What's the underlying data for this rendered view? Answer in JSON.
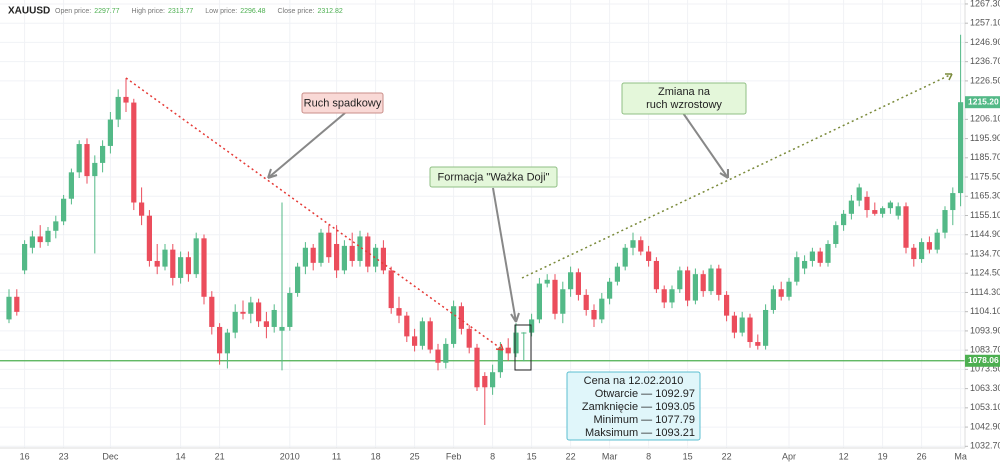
{
  "chart_data": {
    "type": "candlestick",
    "symbol": "XAUUSD",
    "header": [
      {
        "label": "Open price:",
        "value": 2297.77
      },
      {
        "label": "High price:",
        "value": 2313.77
      },
      {
        "label": "Low price:",
        "value": 2296.48
      },
      {
        "label": "Close price:",
        "value": 2312.82
      }
    ],
    "categories": [
      null,
      null,
      "16",
      null,
      null,
      null,
      null,
      "23",
      null,
      null,
      null,
      null,
      null,
      "Dec",
      null,
      null,
      null,
      null,
      null,
      null,
      null,
      null,
      "14",
      null,
      null,
      null,
      null,
      "21",
      null,
      null,
      null,
      null,
      null,
      null,
      null,
      null,
      "2010",
      null,
      null,
      null,
      null,
      null,
      "11",
      null,
      null,
      null,
      null,
      "18",
      null,
      null,
      null,
      null,
      "25",
      null,
      null,
      null,
      null,
      "Feb",
      null,
      null,
      null,
      null,
      "8",
      null,
      null,
      null,
      null,
      "15",
      null,
      null,
      null,
      null,
      "22",
      null,
      null,
      null,
      null,
      "Mar",
      null,
      null,
      null,
      null,
      "8",
      null,
      null,
      null,
      null,
      "15",
      null,
      null,
      null,
      null,
      "22",
      null,
      null,
      null,
      null,
      null,
      null,
      null,
      "Apr",
      null,
      null,
      null,
      null,
      null,
      null,
      "12",
      null,
      null,
      null,
      null,
      "19",
      null,
      null,
      null,
      null,
      "26",
      null,
      null,
      null,
      null,
      "Ma"
    ],
    "open": [
      1100,
      1112,
      1126,
      1138,
      1144,
      1141,
      1147,
      1152,
      1164,
      1178,
      1193,
      1176,
      1183,
      1192,
      1206,
      1218,
      1215,
      1162,
      1155,
      1131,
      1128,
      1137,
      1122,
      1133,
      1124,
      1143,
      1112,
      1096,
      1082,
      1093,
      1104,
      1103,
      1109,
      1099,
      1096,
      1094,
      1096,
      1114,
      1128,
      1138,
      1130,
      1146,
      1140,
      1126,
      1139,
      1131,
      1144,
      1128,
      1138,
      1126,
      1106,
      1102,
      1091,
      1086,
      1099,
      1084,
      1077,
      1087,
      1107,
      1095,
      1085,
      1070,
      1064,
      1072,
      1085,
      1082,
      1092.97,
      1093,
      1100,
      1119,
      1121,
      1103,
      1116,
      1125,
      1113,
      1105,
      1100,
      1111,
      1120,
      1128,
      1138,
      1142,
      1136,
      1131,
      1116,
      1109,
      1116,
      1126,
      1110,
      1124,
      1115,
      1127,
      1113,
      1102,
      1093,
      1101,
      1088,
      1086,
      1105,
      1116,
      1112,
      1120,
      1127,
      1131,
      1136,
      1130,
      1140,
      1150,
      1156,
      1163,
      1165,
      1158,
      1156,
      1159,
      1155,
      1160,
      1138,
      1132,
      1141,
      1137,
      1146,
      1158,
      1167
    ],
    "high": [
      1116,
      1116,
      1142,
      1147,
      1150,
      1149,
      1155,
      1166,
      1180,
      1195,
      1196,
      1187,
      1195,
      1210,
      1222,
      1228,
      1217,
      1170,
      1158,
      1140,
      1140,
      1140,
      1136,
      1136,
      1146,
      1145,
      1115,
      1098,
      1095,
      1108,
      1110,
      1112,
      1111,
      1104,
      1108,
      1162,
      1117,
      1130,
      1141,
      1140,
      1148,
      1150,
      1150,
      1142,
      1146,
      1147,
      1146,
      1140,
      1142,
      1128,
      1112,
      1104,
      1095,
      1101,
      1101,
      1087,
      1090,
      1110,
      1109,
      1097,
      1087,
      1072,
      1076,
      1088,
      1090,
      1098,
      1093.21,
      1103,
      1122,
      1124,
      1124,
      1120,
      1128,
      1127,
      1116,
      1108,
      1114,
      1122,
      1130,
      1140,
      1146,
      1144,
      1139,
      1133,
      1118,
      1118,
      1128,
      1128,
      1127,
      1126,
      1129,
      1129,
      1115,
      1104,
      1104,
      1103,
      1092,
      1108,
      1118,
      1120,
      1122,
      1136,
      1134,
      1138,
      1138,
      1142,
      1152,
      1158,
      1166,
      1172,
      1168,
      1162,
      1160,
      1163,
      1162,
      1162,
      1140,
      1143,
      1144,
      1148,
      1160,
      1170,
      1251
    ],
    "low": [
      1098,
      1102,
      1124,
      1135,
      1138,
      1139,
      1143,
      1150,
      1161,
      1175,
      1172,
      1135,
      1178,
      1188,
      1202,
      1210,
      1158,
      1150,
      1128,
      1124,
      1126,
      1118,
      1119,
      1120,
      1122,
      1108,
      1092,
      1076,
      1074,
      1090,
      1100,
      1098,
      1096,
      1090,
      1093,
      1073,
      1094,
      1112,
      1124,
      1126,
      1128,
      1130,
      1122,
      1124,
      1128,
      1128,
      1125,
      1125,
      1124,
      1103,
      1098,
      1088,
      1083,
      1084,
      1082,
      1073,
      1074,
      1085,
      1092,
      1082,
      1062,
      1044,
      1060,
      1069,
      1078,
      1080,
      1077.79,
      1091,
      1098,
      1117,
      1100,
      1098,
      1112,
      1110,
      1102,
      1096,
      1098,
      1108,
      1118,
      1126,
      1134,
      1134,
      1128,
      1114,
      1106,
      1106,
      1114,
      1107,
      1108,
      1112,
      1113,
      1110,
      1099,
      1090,
      1091,
      1085,
      1084,
      1084,
      1103,
      1110,
      1110,
      1118,
      1124,
      1128,
      1128,
      1128,
      1138,
      1147,
      1153,
      1160,
      1154,
      1155,
      1154,
      1156,
      1153,
      1135,
      1128,
      1130,
      1135,
      1135,
      1143,
      1150,
      1160
    ],
    "close": [
      1112,
      1104,
      1140,
      1144,
      1141,
      1147,
      1152,
      1164,
      1178,
      1193,
      1176,
      1183,
      1192,
      1206,
      1218,
      1215,
      1162,
      1155,
      1131,
      1128,
      1137,
      1122,
      1133,
      1124,
      1143,
      1112,
      1096,
      1082,
      1093,
      1104,
      1103,
      1109,
      1099,
      1096,
      1105,
      1096,
      1114,
      1128,
      1138,
      1130,
      1146,
      1133,
      1126,
      1139,
      1131,
      1144,
      1128,
      1138,
      1126,
      1106,
      1102,
      1091,
      1086,
      1099,
      1084,
      1077,
      1087,
      1107,
      1095,
      1085,
      1064,
      1064,
      1072,
      1085,
      1082,
      1093,
      1093.05,
      1100,
      1119,
      1121,
      1103,
      1116,
      1125,
      1113,
      1105,
      1100,
      1111,
      1120,
      1128,
      1138,
      1142,
      1136,
      1131,
      1116,
      1109,
      1116,
      1126,
      1110,
      1124,
      1115,
      1127,
      1113,
      1102,
      1093,
      1101,
      1088,
      1086,
      1105,
      1116,
      1112,
      1120,
      1133,
      1131,
      1136,
      1130,
      1140,
      1150,
      1156,
      1163,
      1170,
      1158,
      1156,
      1159,
      1162,
      1160,
      1138,
      1132,
      1141,
      1137,
      1146,
      1158,
      1167,
      1215.2
    ],
    "up_color": "#53b987",
    "down_color": "#eb4d5c",
    "ylim": [
      1031.8,
      1269.4
    ],
    "yticks": [
      {
        "value": 1267.3,
        "label": "1267.30"
      },
      {
        "value": 1257.1,
        "label": "1257.10"
      },
      {
        "value": 1246.9,
        "label": "1246.90"
      },
      {
        "value": 1236.7,
        "label": "1236.70"
      },
      {
        "value": 1226.5,
        "label": "1226.50"
      },
      {
        "value": 1206.1,
        "label": "1206.10"
      },
      {
        "value": 1195.9,
        "label": "1195.90"
      },
      {
        "value": 1185.7,
        "label": "1185.70"
      },
      {
        "value": 1175.5,
        "label": "1175.50"
      },
      {
        "value": 1165.3,
        "label": "1165.30"
      },
      {
        "value": 1155.1,
        "label": "1155.10"
      },
      {
        "value": 1144.9,
        "label": "1144.90"
      },
      {
        "value": 1134.7,
        "label": "1134.70"
      },
      {
        "value": 1124.5,
        "label": "1124.50"
      },
      {
        "value": 1114.3,
        "label": "1114.30"
      },
      {
        "value": 1104.1,
        "label": "1104.10"
      },
      {
        "value": 1093.9,
        "label": "1093.90"
      },
      {
        "value": 1083.7,
        "label": "1083.70"
      },
      {
        "value": 1073.5,
        "label": "1073.50"
      },
      {
        "value": 1063.3,
        "label": "1063.30"
      },
      {
        "value": 1053.1,
        "label": "1053.10"
      },
      {
        "value": 1042.9,
        "label": "1042.90"
      },
      {
        "value": 1032.7,
        "label": "1032.70"
      }
    ],
    "grid": true,
    "last_price": {
      "value": 1215.2,
      "label": "1215.20"
    },
    "support_level": 1078.06,
    "support_color": "#4caf50",
    "annotations": {
      "downtrend": "Ruch spadkowy",
      "pattern": "Formacja \"Ważka Doji\"",
      "uptrend": [
        "Zmiana na",
        "ruch wzrostowy"
      ],
      "info": [
        "Cena na 12.02.2010",
        "Otwarcie — 1092.97",
        "Zamknięcie — 1093.05",
        "Minimum — 1077.79",
        "Maksimum — 1093.21"
      ]
    }
  }
}
